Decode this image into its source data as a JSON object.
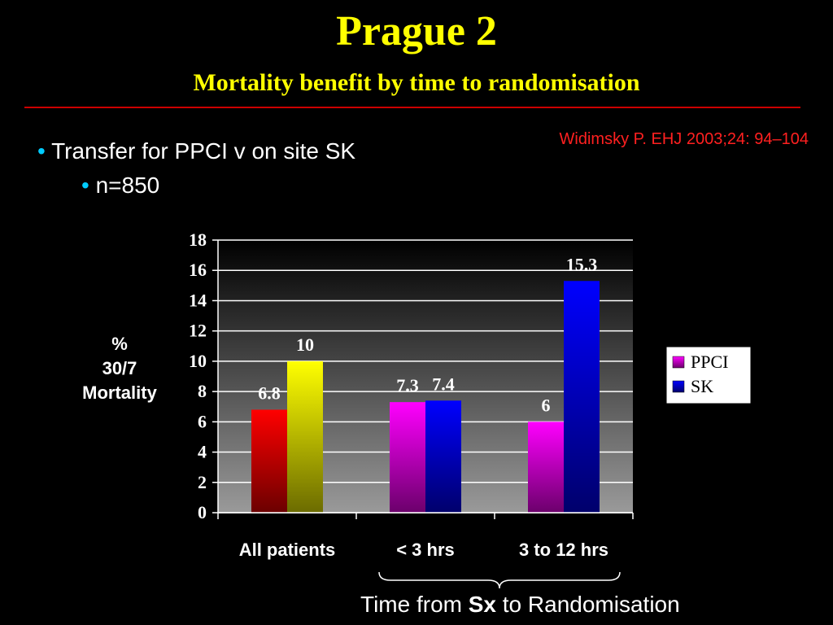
{
  "slide": {
    "title": "Prague 2",
    "subtitle": "Mortality benefit by time to randomisation",
    "citation": "Widimsky P. EHJ 2003;24: 94–104",
    "bullets": [
      {
        "marker": "•",
        "text": "Transfer for PPCI v on site SK"
      },
      {
        "marker": "•",
        "text": "n=850"
      }
    ],
    "y_label_lines": [
      "%",
      "30/7",
      "Mortality"
    ],
    "x_axis_title": {
      "before": "Time from ",
      "bold": "Sx",
      "after": " to Randomisation"
    },
    "colors": {
      "title": "#ffff00",
      "rule": "#cc0000",
      "citation": "#ff2020",
      "bullet_marker": "#00ccff"
    }
  },
  "chart_data": {
    "type": "bar",
    "categories": [
      "All patients",
      "< 3 hrs",
      "3 to 12 hrs"
    ],
    "series": [
      {
        "name": "PPCI",
        "values": [
          6.8,
          7.3,
          6
        ],
        "colors": [
          "#ff0000",
          "#ff00ff",
          "#ff00ff"
        ]
      },
      {
        "name": "SK",
        "values": [
          10,
          7.4,
          15.3
        ],
        "colors": [
          "#ffff00",
          "#0000ff",
          "#0000ff"
        ]
      }
    ],
    "data_labels": [
      [
        "6.8",
        "7.3",
        "6"
      ],
      [
        "10",
        "7.4",
        "15.3"
      ]
    ],
    "ylim": [
      0,
      18
    ],
    "yticks": [
      0,
      2,
      4,
      6,
      8,
      10,
      12,
      14,
      16,
      18
    ],
    "grid": true,
    "legend": {
      "position": "right",
      "entries": [
        {
          "label": "PPCI",
          "color": "#ff00ff"
        },
        {
          "label": "SK",
          "color": "#0000ff"
        }
      ]
    }
  }
}
